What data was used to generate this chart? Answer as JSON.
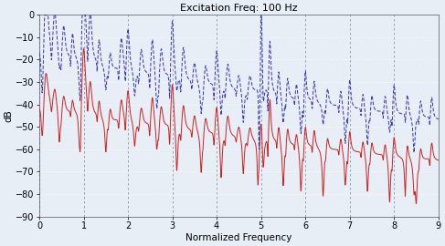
{
  "title": "Excitation Freq: 100 Hz",
  "xlabel": "Normalized Frequency",
  "ylabel": "dB",
  "xlim": [
    0,
    9
  ],
  "ylim": [
    -90,
    0
  ],
  "yticks": [
    -90,
    -80,
    -70,
    -60,
    -50,
    -40,
    -30,
    -20,
    -10,
    0
  ],
  "xticks": [
    0,
    1,
    2,
    3,
    4,
    5,
    6,
    7,
    8,
    9
  ],
  "bg_color": "#e8eef5",
  "solid_color": "#cc2222",
  "dashed_color": "#3333bb",
  "line_width": 0.7,
  "n_points": 4000,
  "seed": 7
}
